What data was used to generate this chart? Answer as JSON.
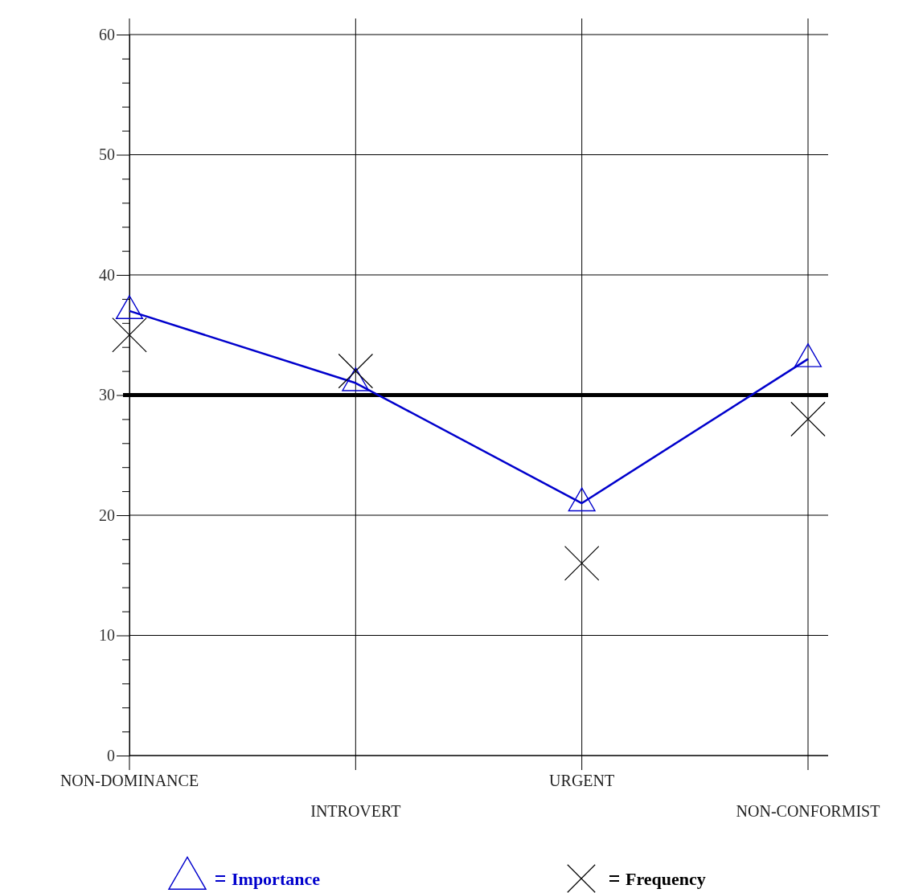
{
  "chart_data": {
    "type": "line",
    "categories": [
      "NON-DOMINANCE",
      "INTROVERT",
      "URGENT",
      "NON-CONFORMIST"
    ],
    "series": [
      {
        "name": "Importance",
        "color": "#0000cc",
        "values": [
          37,
          31,
          21,
          33
        ],
        "marker": "triangle"
      },
      {
        "name": "Frequency",
        "type": "scatter",
        "color": "#000000",
        "values": [
          35,
          32,
          16,
          28
        ],
        "marker": "cross"
      }
    ],
    "ylim": [
      0,
      60
    ],
    "yticks": [
      0,
      {
        "value": 2,
        "label": null
      },
      {
        "value": 4,
        "label": null
      },
      {
        "value": 6,
        "label": null
      },
      {
        "value": 8,
        "label": null
      },
      10,
      {
        "value": 12,
        "label": null
      },
      {
        "value": 14,
        "label": null
      },
      {
        "value": 16,
        "label": null
      },
      {
        "value": 18,
        "label": null
      },
      20,
      {
        "value": 22,
        "label": null
      },
      {
        "value": 24,
        "label": null
      },
      {
        "value": 26,
        "label": null
      },
      {
        "value": 28,
        "label": null
      },
      30,
      {
        "value": 32,
        "label": null
      },
      {
        "value": 34,
        "label": null
      },
      {
        "value": 36,
        "label": null
      },
      {
        "value": 38,
        "label": null
      },
      40,
      {
        "value": 42,
        "label": null
      },
      {
        "value": 44,
        "label": null
      },
      {
        "value": 46,
        "label": null
      },
      {
        "value": 48,
        "label": null
      },
      50,
      {
        "value": 52,
        "label": null
      },
      {
        "value": 54,
        "label": null
      },
      {
        "value": 56,
        "label": null
      },
      {
        "value": 58,
        "label": null
      },
      60
    ],
    "ref_lines": [
      {
        "axis": "y",
        "value": 30,
        "color": "#000000"
      }
    ],
    "grid": true,
    "legend": "bottom"
  }
}
